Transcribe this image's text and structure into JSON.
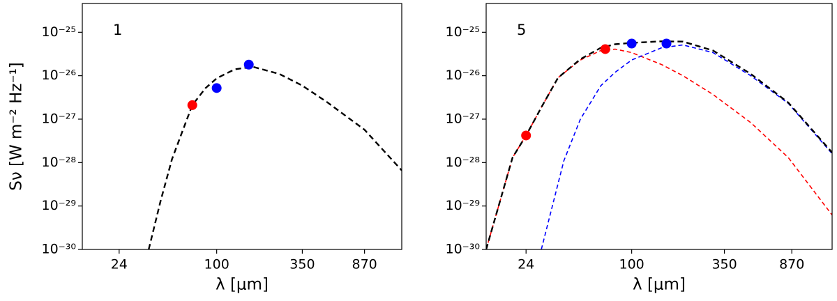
{
  "chart_data": [
    {
      "type": "line",
      "label": "1",
      "xlabel": "λ [μm]",
      "ylabel": "Sν [W m⁻² Hz⁻¹]",
      "xscale": "log",
      "yscale": "log",
      "xlim": [
        14,
        1500
      ],
      "ylim": [
        1e-30,
        4.6e-25
      ],
      "xticks": [
        24,
        100,
        350,
        870
      ],
      "yticks": [
        {
          "value": 1e-30,
          "label": "10⁻³⁰"
        },
        {
          "value": 1e-29,
          "label": "10⁻²⁹"
        },
        {
          "value": 1e-28,
          "label": "10⁻²⁸"
        },
        {
          "value": 1e-27,
          "label": "10⁻²⁷"
        },
        {
          "value": 1e-26,
          "label": "10⁻²⁶"
        },
        {
          "value": 1e-25,
          "label": "10⁻²⁵"
        }
      ],
      "series": [
        {
          "color": "#000000",
          "style": "dashed",
          "x": [
            37,
            44,
            52,
            60,
            70,
            85,
            100,
            130,
            170,
            250,
            350,
            500,
            870,
            1500
          ],
          "values": [
            1e-30,
            1.3e-29,
            1.2e-28,
            4.8e-28,
            2.1e-27,
            5.2e-27,
            8.7e-27,
            1.4e-26,
            1.6e-26,
            1.1e-26,
            5.9e-27,
            2.5e-27,
            5.7e-28,
            6.6e-29
          ]
        },
        {
          "color": "#ff0000",
          "style": "markers",
          "x": [
            70
          ],
          "values": [
            2.1e-27
          ]
        },
        {
          "color": "#0000ff",
          "style": "markers",
          "x": [
            100,
            160
          ],
          "values": [
            5.2e-27,
            1.8e-26
          ]
        }
      ]
    },
    {
      "type": "line",
      "label": "5",
      "xlabel": "λ [μm]",
      "xscale": "log",
      "yscale": "log",
      "xlim": [
        14,
        1500
      ],
      "ylim": [
        1e-30,
        4.6e-25
      ],
      "xticks": [
        24,
        100,
        350,
        870
      ],
      "yticks": [
        {
          "value": 1e-30,
          "label": "10⁻³⁰"
        },
        {
          "value": 1e-29,
          "label": "10⁻²⁹"
        },
        {
          "value": 1e-28,
          "label": "10⁻²⁸"
        },
        {
          "value": 1e-27,
          "label": "10⁻²⁷"
        },
        {
          "value": 1e-26,
          "label": "10⁻²⁶"
        },
        {
          "value": 1e-25,
          "label": "10⁻²⁵"
        }
      ],
      "series": [
        {
          "color": "#ff0000",
          "style": "dashed-thin",
          "x": [
            14,
            20,
            24,
            30,
            37,
            50,
            66,
            80,
            100,
            150,
            200,
            300,
            500,
            830,
            1500
          ],
          "values": [
            1e-30,
            1.3e-28,
            4.2e-28,
            2.1e-27,
            9e-27,
            2.3e-26,
            3.8e-26,
            4.1e-26,
            3.4e-26,
            1.8e-26,
            1e-26,
            3.7e-27,
            8.3e-28,
            1.3e-28,
            6.2e-30
          ]
        },
        {
          "color": "#0000ff",
          "style": "dashed-thin",
          "x": [
            29.5,
            40,
            50,
            66,
            80,
            100,
            150,
            200,
            300,
            500,
            830,
            1500
          ],
          "values": [
            1e-30,
            1.1e-28,
            1e-27,
            5.9e-27,
            1.2e-26,
            2.3e-26,
            4.4e-26,
            5.1e-26,
            3.4e-26,
            1e-26,
            2.3e-27,
            1.6e-28
          ]
        },
        {
          "color": "#000000",
          "style": "dashed",
          "x": [
            14,
            20,
            24,
            30,
            37,
            50,
            66,
            80,
            100,
            150,
            200,
            300,
            500,
            830,
            1500
          ],
          "values": [
            1e-30,
            1.3e-28,
            4.2e-28,
            2.1e-27,
            9e-27,
            2.4e-26,
            4.4e-26,
            5.3e-26,
            5.7e-26,
            6.2e-26,
            6.1e-26,
            3.8e-26,
            1.1e-26,
            2.4e-27,
            1.7e-28
          ]
        },
        {
          "color": "#ff0000",
          "style": "markers",
          "x": [
            24,
            70
          ],
          "values": [
            4.2e-28,
            4.1e-26
          ]
        },
        {
          "color": "#0000ff",
          "style": "markers",
          "x": [
            100,
            160
          ],
          "values": [
            5.5e-26,
            5.5e-26
          ]
        }
      ]
    }
  ]
}
